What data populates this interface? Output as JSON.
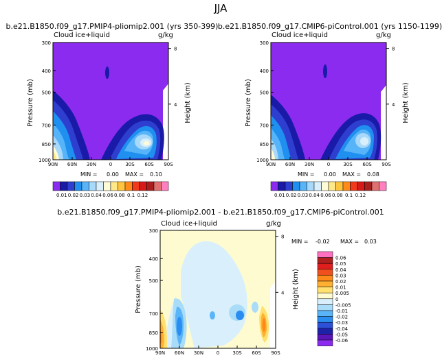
{
  "title": "JJA",
  "chart_data": [
    {
      "type": "heatmap",
      "title": "b.e21.B1850.f09_g17.PMIP4-pliomip2.001 (yrs 350-399)",
      "variable": "Cloud ice+liquid",
      "units": "g/kg",
      "ylabel": "Pressure (mb)",
      "ylabel_right": "Height (km)",
      "xticks": [
        "90N",
        "60N",
        "30N",
        "0",
        "30S",
        "60S",
        "90S"
      ],
      "yticks": [
        "300",
        "400",
        "500",
        "700",
        "850",
        "1000"
      ],
      "height_ticks": [
        "8",
        "4"
      ],
      "min_label": "MIN =",
      "min_value": "0.00",
      "max_label": "MAX =",
      "max_value": "0.10",
      "colorbar_labels": [
        "0.01",
        "0.02",
        "0.03",
        "0.04",
        "0.06",
        "0.08",
        "0.1",
        "0.12"
      ]
    },
    {
      "type": "heatmap",
      "title": "b.e21.B1850.f09_g17.CMIP6-piControl.001 (yrs 1150-1199)",
      "variable": "Cloud ice+liquid",
      "units": "g/kg",
      "ylabel": "Pressure (mb)",
      "ylabel_right": "Height (km)",
      "xticks": [
        "90N",
        "60N",
        "30N",
        "0",
        "30S",
        "60S",
        "90S"
      ],
      "yticks": [
        "300",
        "400",
        "500",
        "700",
        "850",
        "1000"
      ],
      "height_ticks": [
        "8",
        "4"
      ],
      "min_label": "MIN =",
      "min_value": "0.00",
      "max_label": "MAX =",
      "max_value": "0.08",
      "colorbar_labels": [
        "0.01",
        "0.02",
        "0.03",
        "0.04",
        "0.06",
        "0.08",
        "0.1",
        "0.12"
      ]
    },
    {
      "type": "heatmap",
      "title": "b.e21.B1850.f09_g17.PMIP4-pliomip2.001 - b.e21.B1850.f09_g17.CMIP6-piControl.001",
      "variable": "Cloud ice+liquid",
      "units": "g/kg",
      "ylabel": "Pressure (mb)",
      "ylabel_right": "Height (km)",
      "xticks": [
        "90N",
        "60N",
        "30N",
        "0",
        "30S",
        "60S",
        "90S"
      ],
      "yticks": [
        "300",
        "400",
        "500",
        "700",
        "850",
        "1000"
      ],
      "height_ticks": [
        "8",
        "4"
      ],
      "min_label": "MIN =",
      "min_value": "-0.02",
      "max_label": "MAX =",
      "max_value": "0.03",
      "colorbar_labels": [
        "0.06",
        "0.05",
        "0.04",
        "0.03",
        "0.02",
        "0.01",
        "0.005",
        "0",
        "-0.005",
        "-0.01",
        "-0.02",
        "-0.03",
        "-0.04",
        "-0.05",
        "-0.06"
      ]
    }
  ],
  "colors": {
    "abs_scale": [
      "#8c2bf0",
      "#1a1aa8",
      "#2e3fd0",
      "#1f8ff0",
      "#57b4f8",
      "#a8d8fa",
      "#d9f0fc",
      "#fffbd6",
      "#ffe88a",
      "#ffc43d",
      "#ff8a1a",
      "#f03a1a",
      "#d61a1a",
      "#a81f1f",
      "#e07070",
      "#ff80c0"
    ],
    "diff_scale": [
      "#ff70c0",
      "#b01e1e",
      "#e01e1e",
      "#f0501e",
      "#ff8a1a",
      "#ffb030",
      "#ffe070",
      "#fffbd0",
      "#d9f0fc",
      "#a8dcf8",
      "#5ab4f8",
      "#2a8ef0",
      "#2e50d8",
      "#1e22a8",
      "#5a16b8",
      "#8c2bf0"
    ]
  }
}
